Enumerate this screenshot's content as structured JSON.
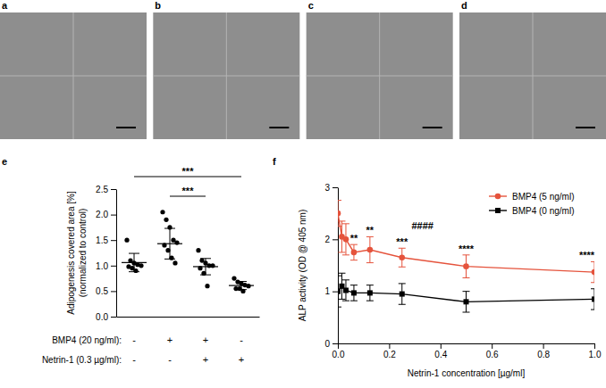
{
  "images": [
    {
      "label": "a"
    },
    {
      "label": "b"
    },
    {
      "label": "c"
    },
    {
      "label": "d"
    }
  ],
  "chart_data": [
    {
      "label": "e",
      "type": "dot",
      "ylabel": [
        "Adipogenesis covered area [%]",
        "(normalized to control)"
      ],
      "categories": [
        null,
        null,
        null,
        null
      ],
      "conditions": [
        {
          "label": "BMP4 (20 ng/ml):",
          "values": [
            "-",
            "+",
            "+",
            "-"
          ]
        },
        {
          "label": "Netrin-1 (0.3 µg/ml):",
          "values": [
            "-",
            "-",
            "+",
            "+"
          ]
        }
      ],
      "values": [
        [
          1.5,
          1.1,
          1.05,
          1.02,
          1.0,
          0.98,
          0.95,
          0.9
        ],
        [
          2.05,
          1.9,
          1.75,
          1.5,
          1.45,
          1.4,
          1.3,
          1.15,
          1.05
        ],
        [
          1.3,
          1.1,
          1.05,
          1.0,
          1.0,
          0.95,
          0.85,
          0.6
        ],
        [
          0.75,
          0.68,
          0.65,
          0.62,
          0.6,
          0.55,
          0.55,
          0.5
        ]
      ],
      "mean": [
        1.06,
        1.43,
        0.98,
        0.61
      ],
      "error": [
        0.18,
        0.3,
        0.16,
        0.08
      ],
      "color": "#000000",
      "ylim": [
        0,
        2.5
      ],
      "yticks": [
        {
          "value": 0,
          "label": "0.0"
        },
        0.5,
        {
          "value": 1,
          "label": "1.0"
        },
        1.5,
        {
          "value": 2,
          "label": "2.0"
        },
        2.5
      ],
      "annotations": [
        {
          "text": "***",
          "groups": [
            0,
            3
          ]
        },
        {
          "text": "***",
          "groups": [
            1,
            2
          ]
        }
      ]
    },
    {
      "label": "f",
      "type": "line",
      "xlabel": "Netrin-1 concentration [µg/ml]",
      "ylabel": "ALP activity (OD @ 405 nm)",
      "x": [
        0,
        0.0156,
        0.03125,
        0.0625,
        0.125,
        0.25,
        0.5,
        1
      ],
      "series": [
        {
          "name": "BMP4 (5 ng/ml)",
          "color": "#e5533c",
          "marker": "circle",
          "values": [
            2.5,
            2.05,
            2.0,
            1.75,
            1.8,
            1.65,
            1.48,
            1.37
          ],
          "error": [
            0.25,
            0.3,
            0.3,
            0.15,
            0.25,
            0.18,
            0.22,
            0.2
          ]
        },
        {
          "name": "BMP4 (0 ng/ml)",
          "color": "#000000",
          "marker": "square",
          "values": [
            1.0,
            1.1,
            1.02,
            0.97,
            0.97,
            0.95,
            0.8,
            0.85
          ],
          "error": [
            0.3,
            0.25,
            0.2,
            0.15,
            0.15,
            0.2,
            0.2,
            0.2
          ]
        }
      ],
      "xlim": [
        0,
        1
      ],
      "xticks": [
        {
          "value": 0,
          "label": "0.0"
        },
        0.2,
        0.4,
        0.6,
        0.8,
        {
          "value": 1,
          "label": "1.0"
        }
      ],
      "ylim": [
        0,
        3
      ],
      "yticks": [
        0,
        1,
        2,
        3
      ],
      "legend": "upper right",
      "annotations": [
        {
          "text": "**",
          "x": 0.0625
        },
        {
          "text": "**",
          "x": 0.125
        },
        {
          "text": "***",
          "x": 0.25
        },
        {
          "text": "****",
          "x": 0.5
        },
        {
          "text": "****",
          "x": 1
        },
        {
          "text": "####",
          "x": 0.33,
          "y": 2.2
        }
      ]
    }
  ]
}
